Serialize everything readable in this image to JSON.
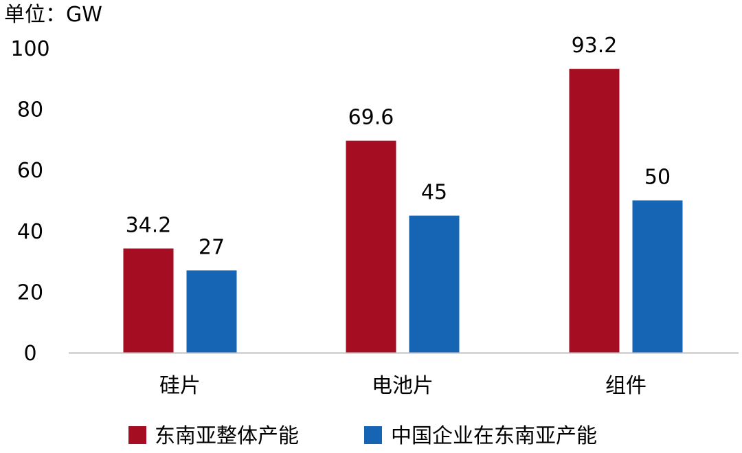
{
  "chart_data": {
    "type": "bar",
    "unit_label": "单位：GW",
    "categories": [
      "硅片",
      "电池片",
      "组件"
    ],
    "series": [
      {
        "name": "东南亚整体产能",
        "values": [
          34.2,
          69.6,
          93.2
        ],
        "value_labels": [
          "34.2",
          "69.6",
          "93.2"
        ],
        "color": "#A50D22"
      },
      {
        "name": "中国企业在东南亚产能",
        "values": [
          27,
          45,
          50
        ],
        "value_labels": [
          "27",
          "45",
          "50"
        ],
        "color": "#1565B4"
      }
    ],
    "yticks": [
      "0",
      "20",
      "40",
      "60",
      "80",
      "100"
    ],
    "ytick_values": [
      0,
      20,
      40,
      60,
      80,
      100
    ],
    "ylim": [
      0,
      100
    ],
    "grid": false,
    "legend_position": "bottom"
  }
}
